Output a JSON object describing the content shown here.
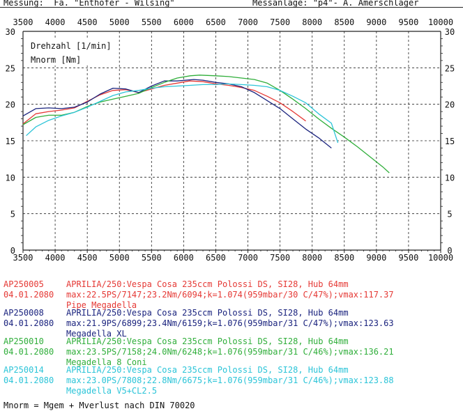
{
  "header": {
    "left": "Messung:  Fa. \"Enthofer - Wilsing\"",
    "right": "Messanlage: \"p4\"- A. Amerschlager"
  },
  "chart_data": {
    "type": "line",
    "title": "",
    "xlabel": "",
    "ylabel": "",
    "xlim": [
      3500,
      10000
    ],
    "ylim": [
      0,
      30
    ],
    "x_ticks": [
      "3500",
      "4000",
      "4500",
      "5000",
      "5500",
      "6000",
      "6500",
      "7000",
      "7500",
      "8000",
      "8500",
      "9000",
      "9500",
      "10000"
    ],
    "y_ticks": [
      "0",
      "5",
      "10",
      "15",
      "20",
      "25",
      "30"
    ],
    "grid": true,
    "legend_labels": [
      "Drehzahl [1/min]",
      "Mnorm [Nm]"
    ],
    "series": [
      {
        "id": "AP250005",
        "color": "#e53935",
        "points": [
          [
            3500,
            17.3
          ],
          [
            3700,
            18.7
          ],
          [
            3900,
            19.0
          ],
          [
            4100,
            19.2
          ],
          [
            4300,
            19.5
          ],
          [
            4500,
            20.4
          ],
          [
            4700,
            21.3
          ],
          [
            4900,
            21.9
          ],
          [
            5100,
            22.0
          ],
          [
            5300,
            21.6
          ],
          [
            5500,
            22.1
          ],
          [
            5700,
            22.6
          ],
          [
            5900,
            22.9
          ],
          [
            6094,
            23.2
          ],
          [
            6300,
            23.1
          ],
          [
            6500,
            22.8
          ],
          [
            6700,
            22.6
          ],
          [
            6900,
            22.3
          ],
          [
            7100,
            21.9
          ],
          [
            7300,
            21.1
          ],
          [
            7500,
            20.2
          ],
          [
            7700,
            19.0
          ],
          [
            7900,
            17.7
          ]
        ]
      },
      {
        "id": "AP250008",
        "color": "#1a237e",
        "points": [
          [
            3500,
            18.4
          ],
          [
            3700,
            19.4
          ],
          [
            3900,
            19.5
          ],
          [
            4100,
            19.4
          ],
          [
            4300,
            19.6
          ],
          [
            4500,
            20.3
          ],
          [
            4700,
            21.4
          ],
          [
            4900,
            22.2
          ],
          [
            5100,
            22.1
          ],
          [
            5300,
            21.6
          ],
          [
            5500,
            22.5
          ],
          [
            5700,
            23.2
          ],
          [
            5900,
            23.2
          ],
          [
            6159,
            23.4
          ],
          [
            6300,
            23.3
          ],
          [
            6500,
            23.0
          ],
          [
            6700,
            22.8
          ],
          [
            6900,
            22.4
          ],
          [
            7100,
            21.6
          ],
          [
            7300,
            20.5
          ],
          [
            7500,
            19.4
          ],
          [
            7700,
            18.0
          ],
          [
            7900,
            16.6
          ],
          [
            8100,
            15.4
          ],
          [
            8300,
            14.0
          ]
        ]
      },
      {
        "id": "AP250010",
        "color": "#2fae3a",
        "points": [
          [
            3500,
            17.2
          ],
          [
            3700,
            18.2
          ],
          [
            3900,
            18.5
          ],
          [
            4100,
            18.5
          ],
          [
            4300,
            18.9
          ],
          [
            4500,
            19.7
          ],
          [
            4700,
            20.3
          ],
          [
            4900,
            20.7
          ],
          [
            5100,
            21.1
          ],
          [
            5300,
            21.5
          ],
          [
            5500,
            22.3
          ],
          [
            5700,
            23.0
          ],
          [
            5900,
            23.6
          ],
          [
            6100,
            23.9
          ],
          [
            6248,
            24.0
          ],
          [
            6500,
            23.9
          ],
          [
            6700,
            23.8
          ],
          [
            6900,
            23.6
          ],
          [
            7100,
            23.4
          ],
          [
            7300,
            22.9
          ],
          [
            7500,
            21.9
          ],
          [
            7700,
            20.7
          ],
          [
            7900,
            19.4
          ],
          [
            8100,
            18.0
          ],
          [
            8300,
            16.7
          ],
          [
            8500,
            15.5
          ],
          [
            8700,
            14.2
          ],
          [
            8900,
            12.8
          ],
          [
            9100,
            11.4
          ],
          [
            9200,
            10.6
          ]
        ]
      },
      {
        "id": "AP250014",
        "color": "#2bc4d8",
        "points": [
          [
            3550,
            15.7
          ],
          [
            3700,
            16.9
          ],
          [
            3900,
            17.8
          ],
          [
            4100,
            18.4
          ],
          [
            4300,
            18.9
          ],
          [
            4500,
            19.6
          ],
          [
            4700,
            20.4
          ],
          [
            4900,
            21.2
          ],
          [
            5100,
            21.7
          ],
          [
            5300,
            21.9
          ],
          [
            5500,
            22.2
          ],
          [
            5700,
            22.4
          ],
          [
            5900,
            22.5
          ],
          [
            6100,
            22.6
          ],
          [
            6300,
            22.7
          ],
          [
            6500,
            22.7
          ],
          [
            6675,
            22.8
          ],
          [
            6900,
            22.7
          ],
          [
            7100,
            22.6
          ],
          [
            7300,
            22.4
          ],
          [
            7500,
            21.9
          ],
          [
            7700,
            21.1
          ],
          [
            7900,
            20.2
          ],
          [
            8100,
            18.7
          ],
          [
            8300,
            17.4
          ],
          [
            8400,
            14.7
          ]
        ]
      }
    ]
  },
  "legend": [
    {
      "id": "AP250005",
      "date": "04.01.2080",
      "color": "#e53935",
      "line1": "APRILIA/250:Vespa Cosa 235ccm Polossi DS, SI28, Hub 64mm",
      "line2": "max:22.5PS/7147;23.2Nm/6094;k=1.074(959mbar/30 C/47%);vmax:117.37",
      "line3": "Pipe Megadella"
    },
    {
      "id": "AP250008",
      "date": "04.01.2080",
      "color": "#1a237e",
      "line1": "APRILIA/250:Vespa Cosa 235ccm Polossi DS, SI28, Hub 64mm",
      "line2": "max:21.9PS/6899;23.4Nm/6159;k=1.076(959mbar/31 C/47%);vmax:123.63",
      "line3": "Megadella XL"
    },
    {
      "id": "AP250010",
      "date": "04.01.2080",
      "color": "#2fae3a",
      "line1": "APRILIA/250:Vespa Cosa 235ccm Polossi DS, SI28, Hub 64mm",
      "line2": "max:23.5PS/7158;24.0Nm/6248;k=1.076(959mbar/31 C/46%);vmax:136.21",
      "line3": "Megadella 8 Coni"
    },
    {
      "id": "AP250014",
      "date": "04.01.2080",
      "color": "#2bc4d8",
      "line1": "APRILIA/250:Vespa Cosa 235ccm Polossi DS, SI28, Hub 64mm",
      "line2": "max:23.0PS/7808;22.8Nm/6675;k=1.076(959mbar/31 C/46%);vmax:123.88",
      "line3": "Megadella V5+CL2.5"
    }
  ],
  "footer": "Mnorm = Mgem + Mverlust nach DIN 70020"
}
